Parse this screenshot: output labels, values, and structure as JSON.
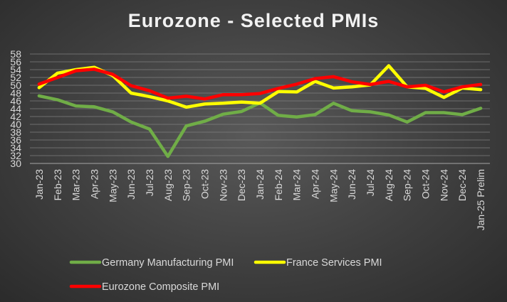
{
  "chart_data": {
    "type": "line",
    "title": "Eurozone - Selected PMIs",
    "xlabel": "",
    "ylabel": "",
    "ylim": [
      30,
      58
    ],
    "yticks": [
      30,
      32,
      34,
      36,
      38,
      40,
      42,
      44,
      46,
      48,
      50,
      52,
      54,
      56,
      58
    ],
    "grid": true,
    "legend_position": "bottom",
    "categories": [
      "Jan-23",
      "Feb-23",
      "Mar-23",
      "Apr-23",
      "May-23",
      "Jun-23",
      "Jul-23",
      "Aug-23",
      "Sep-23",
      "Oct-23",
      "Nov-23",
      "Dec-23",
      "Jan-24",
      "Feb-24",
      "Mar-24",
      "Apr-24",
      "May-24",
      "Jun-24",
      "Jul-24",
      "Aug-24",
      "Sep-24",
      "Oct-24",
      "Nov-24",
      "Dec-24",
      "Jan-25 Prelim"
    ],
    "series": [
      {
        "name": "Germany Manufacturing PMI",
        "color": "#70ad47",
        "values": [
          47.3,
          46.3,
          44.7,
          44.5,
          43.2,
          40.6,
          38.8,
          31.8,
          39.6,
          40.8,
          42.6,
          43.3,
          45.5,
          42.3,
          41.9,
          42.5,
          45.4,
          43.5,
          43.2,
          42.4,
          40.6,
          43.0,
          43.0,
          42.5,
          44.1
        ]
      },
      {
        "name": "France Services PMI",
        "color": "#ffff00",
        "values": [
          49.4,
          53.1,
          54.0,
          54.6,
          52.5,
          48.0,
          47.1,
          46.0,
          44.4,
          45.2,
          45.4,
          45.7,
          45.4,
          48.4,
          48.3,
          51.0,
          49.3,
          49.6,
          50.1,
          55.0,
          49.6,
          49.2,
          46.9,
          49.3,
          48.9
        ]
      },
      {
        "name": "Eurozone Composite PMI",
        "color": "#ff0000",
        "values": [
          50.3,
          52.0,
          53.7,
          54.1,
          52.8,
          49.9,
          48.6,
          46.7,
          47.2,
          46.5,
          47.6,
          47.6,
          47.9,
          49.2,
          50.3,
          51.7,
          52.2,
          50.9,
          50.2,
          51.0,
          49.6,
          50.0,
          48.3,
          49.6,
          50.2
        ]
      }
    ]
  }
}
